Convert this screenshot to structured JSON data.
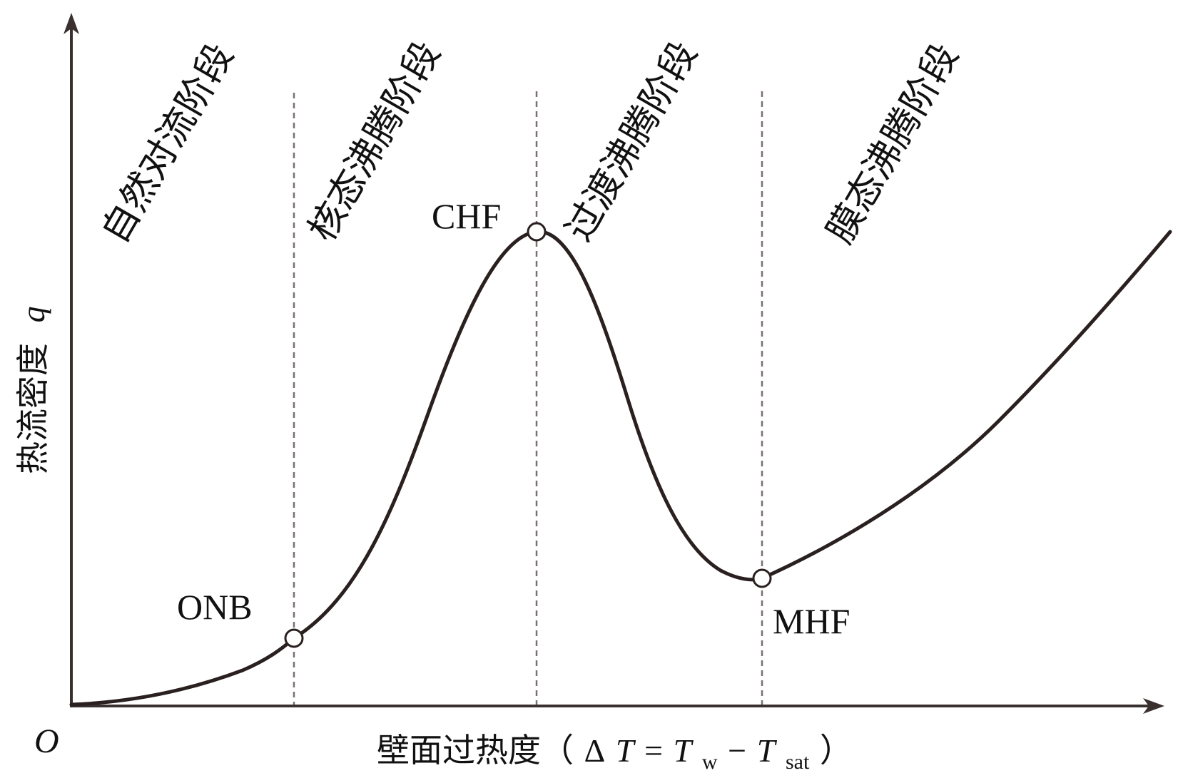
{
  "axes": {
    "x_label": {
      "prefix": "壁面过热度（",
      "delta": "Δ",
      "T": "T",
      "equals": "=",
      "T2": "T",
      "sub_w": "w",
      "minus": "−",
      "T3": "T",
      "sub_sat": "sat",
      "suffix": "）"
    },
    "y_label": {
      "text": "热流密度",
      "symbol": "q"
    },
    "origin": "O"
  },
  "stages": [
    {
      "label": "自然对流阶段"
    },
    {
      "label": "核态沸腾阶段"
    },
    {
      "label": "过渡沸腾阶段"
    },
    {
      "label": "膜态沸腾阶段"
    }
  ],
  "points": {
    "onb": "ONB",
    "chf": "CHF",
    "mhf": "MHF"
  },
  "colors": {
    "curve": "#2a2020",
    "axis": "#3a3030",
    "divider": "#7a7070",
    "marker_fill": "#ffffff"
  }
}
